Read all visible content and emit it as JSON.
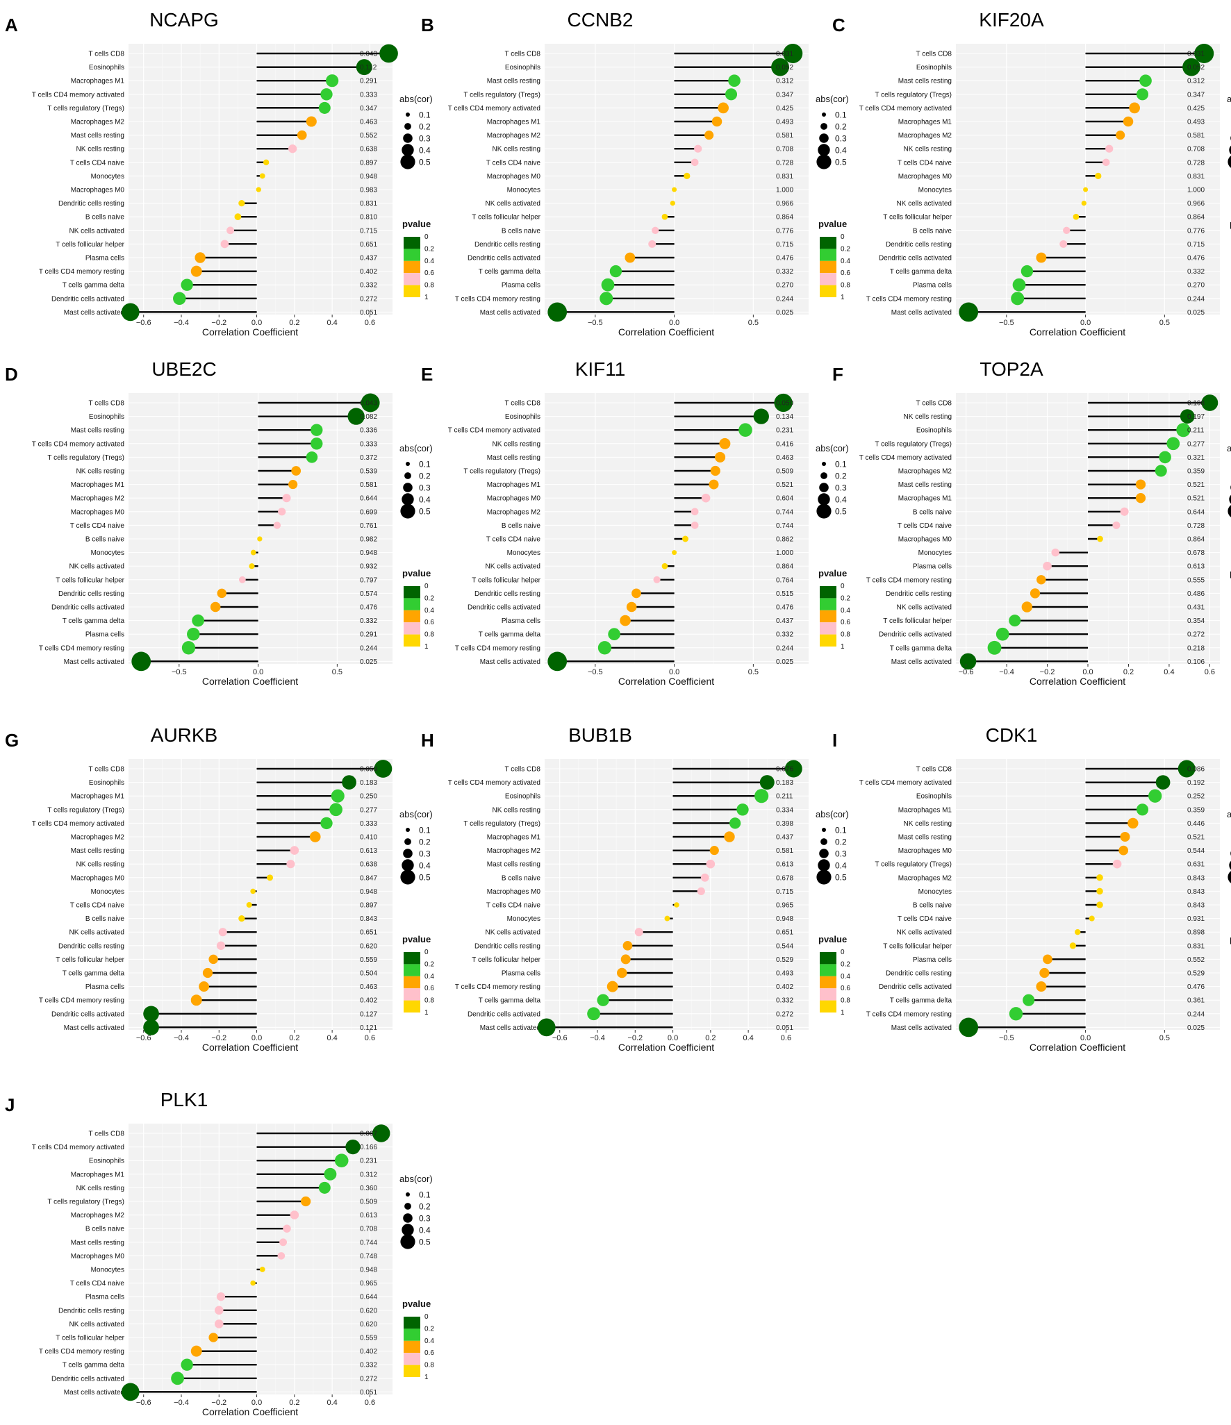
{
  "chart_data": [
    {
      "type": "lollipop",
      "letter": "A",
      "title": "NCAPG",
      "xlabel": "Correlation Coefficient",
      "xticks": [
        -0.6,
        -0.4,
        -0.2,
        0.0,
        0.2,
        0.4,
        0.6
      ],
      "xlim": [
        -0.68,
        0.72
      ],
      "categories": [
        "T cells CD8",
        "Eosinophils",
        "Macrophages M1",
        "T cells CD4 memory activated",
        "T cells regulatory (Tregs)",
        "Macrophages M2",
        "Mast cells resting",
        "NK cells resting",
        "T cells CD4 naive",
        "Monocytes",
        "Macrophages M0",
        "Dendritic cells resting",
        "B cells naive",
        "NK cells activated",
        "T cells follicular helper",
        "Plasma cells",
        "T cells CD4 memory resting",
        "T cells gamma delta",
        "Dendritic cells activated",
        "Mast cells activated"
      ],
      "values": [
        0.7,
        0.57,
        0.4,
        0.37,
        0.36,
        0.29,
        0.24,
        0.19,
        0.05,
        0.03,
        0.01,
        -0.08,
        -0.1,
        -0.14,
        -0.17,
        -0.3,
        -0.32,
        -0.37,
        -0.41,
        -0.67
      ],
      "pvalues": [
        "0.043",
        "0.112",
        "0.291",
        "0.333",
        "0.347",
        "0.463",
        "0.552",
        "0.638",
        "0.897",
        "0.948",
        "0.983",
        "0.831",
        "0.810",
        "0.715",
        "0.651",
        "0.437",
        "0.402",
        "0.332",
        "0.272",
        "0.051"
      ]
    },
    {
      "type": "lollipop",
      "letter": "B",
      "title": "CCNB2",
      "xlabel": "Correlation Coefficient",
      "xticks": [
        -0.5,
        0.0,
        0.5
      ],
      "xlim": [
        -0.82,
        0.85
      ],
      "categories": [
        "T cells CD8",
        "Eosinophils",
        "Mast cells resting",
        "T cells regulatory (Tregs)",
        "T cells CD4 memory activated",
        "Macrophages M1",
        "Macrophages M2",
        "NK cells resting",
        "T cells CD4 naive",
        "Macrophages M0",
        "Monocytes",
        "NK cells activated",
        "T cells follicular helper",
        "B cells naive",
        "Dendritic cells resting",
        "Dendritic cells activated",
        "T cells gamma delta",
        "Plasma cells",
        "T cells CD4 memory resting",
        "Mast cells activated"
      ],
      "values": [
        0.75,
        0.67,
        0.38,
        0.36,
        0.31,
        0.27,
        0.22,
        0.15,
        0.13,
        0.08,
        0.0,
        -0.01,
        -0.06,
        -0.12,
        -0.14,
        -0.28,
        -0.37,
        -0.42,
        -0.43,
        -0.74
      ],
      "pvalues": [
        "0.031",
        "0.052",
        "0.312",
        "0.347",
        "0.425",
        "0.493",
        "0.581",
        "0.708",
        "0.728",
        "0.831",
        "1.000",
        "0.966",
        "0.864",
        "0.776",
        "0.715",
        "0.476",
        "0.332",
        "0.270",
        "0.244",
        "0.025"
      ]
    },
    {
      "type": "lollipop",
      "letter": "C",
      "title": "KIF20A",
      "xlabel": "Correlation Coefficient",
      "xticks": [
        -0.5,
        0.0,
        0.5
      ],
      "xlim": [
        -0.82,
        0.85
      ],
      "categories": [
        "T cells CD8",
        "Eosinophils",
        "Mast cells resting",
        "T cells regulatory (Tregs)",
        "T cells CD4 memory activated",
        "Macrophages M1",
        "Macrophages M2",
        "NK cells resting",
        "T cells CD4 naive",
        "Macrophages M0",
        "Monocytes",
        "NK cells activated",
        "T cells follicular helper",
        "B cells naive",
        "Dendritic cells resting",
        "Dendritic cells activated",
        "T cells gamma delta",
        "Plasma cells",
        "T cells CD4 memory resting",
        "Mast cells activated"
      ],
      "values": [
        0.75,
        0.67,
        0.38,
        0.36,
        0.31,
        0.27,
        0.22,
        0.15,
        0.13,
        0.08,
        0.0,
        -0.01,
        -0.06,
        -0.12,
        -0.14,
        -0.28,
        -0.37,
        -0.42,
        -0.43,
        -0.74
      ],
      "pvalues": [
        "0.031",
        "0.052",
        "0.312",
        "0.347",
        "0.425",
        "0.493",
        "0.581",
        "0.708",
        "0.728",
        "0.831",
        "1.000",
        "0.966",
        "0.864",
        "0.776",
        "0.715",
        "0.476",
        "0.332",
        "0.270",
        "0.244",
        "0.025"
      ]
    },
    {
      "type": "lollipop",
      "letter": "D",
      "title": "UBE2C",
      "xlabel": "Correlation Coefficient",
      "xticks": [
        -0.5,
        0.0,
        0.5
      ],
      "xlim": [
        -0.82,
        0.85
      ],
      "categories": [
        "T cells CD8",
        "Eosinophils",
        "Mast cells resting",
        "T cells CD4 memory activated",
        "T cells regulatory (Tregs)",
        "NK cells resting",
        "Macrophages M1",
        "Macrophages M2",
        "Macrophages M0",
        "T cells CD4 naive",
        "B cells naive",
        "Monocytes",
        "NK cells activated",
        "T cells follicular helper",
        "Dendritic cells resting",
        "Dendritic cells activated",
        "T cells gamma delta",
        "Plasma cells",
        "T cells CD4 memory resting",
        "Mast cells activated"
      ],
      "values": [
        0.71,
        0.62,
        0.37,
        0.37,
        0.34,
        0.24,
        0.22,
        0.18,
        0.15,
        0.12,
        0.01,
        -0.03,
        -0.04,
        -0.1,
        -0.23,
        -0.27,
        -0.38,
        -0.41,
        -0.44,
        -0.74
      ],
      "pvalues": [
        "0.043",
        "0.082",
        "0.336",
        "0.333",
        "0.372",
        "0.539",
        "0.581",
        "0.644",
        "0.699",
        "0.761",
        "0.982",
        "0.948",
        "0.932",
        "0.797",
        "0.574",
        "0.476",
        "0.332",
        "0.291",
        "0.244",
        "0.025"
      ]
    },
    {
      "type": "lollipop",
      "letter": "E",
      "title": "KIF11",
      "xlabel": "Correlation Coefficient",
      "xticks": [
        -0.5,
        0.0,
        0.5
      ],
      "xlim": [
        -0.82,
        0.85
      ],
      "categories": [
        "T cells CD8",
        "Eosinophils",
        "T cells CD4 memory activated",
        "NK cells resting",
        "Mast cells resting",
        "T cells regulatory (Tregs)",
        "Macrophages M1",
        "Macrophages M0",
        "Macrophages M2",
        "B cells naive",
        "T cells CD4 naive",
        "Monocytes",
        "NK cells activated",
        "T cells follicular helper",
        "Dendritic cells resting",
        "Dendritic cells activated",
        "Plasma cells",
        "T cells gamma delta",
        "T cells CD4 memory resting",
        "Mast cells activated"
      ],
      "values": [
        0.69,
        0.55,
        0.45,
        0.32,
        0.29,
        0.26,
        0.25,
        0.2,
        0.13,
        0.13,
        0.07,
        0.0,
        -0.06,
        -0.11,
        -0.24,
        -0.27,
        -0.31,
        -0.38,
        -0.44,
        -0.74
      ],
      "pvalues": [
        "0.050",
        "0.134",
        "0.231",
        "0.416",
        "0.463",
        "0.509",
        "0.521",
        "0.604",
        "0.744",
        "0.744",
        "0.862",
        "1.000",
        "0.864",
        "0.764",
        "0.515",
        "0.476",
        "0.437",
        "0.332",
        "0.244",
        "0.025"
      ]
    },
    {
      "type": "lollipop",
      "letter": "F",
      "title": "TOP2A",
      "xlabel": "Correlation Coefficient",
      "xticks": [
        -0.6,
        -0.4,
        -0.2,
        0.0,
        0.2,
        0.4,
        0.6
      ],
      "xlim": [
        -0.65,
        0.65
      ],
      "categories": [
        "T cells CD8",
        "NK cells resting",
        "Eosinophils",
        "T cells regulatory (Tregs)",
        "T cells CD4 memory activated",
        "Macrophages M2",
        "Mast cells resting",
        "Macrophages M1",
        "B cells naive",
        "T cells CD4 naive",
        "Macrophages M0",
        "Monocytes",
        "Plasma cells",
        "T cells CD4 memory resting",
        "Dendritic cells resting",
        "NK cells activated",
        "T cells follicular helper",
        "Dendritic cells activated",
        "T cells gamma delta",
        "Mast cells activated"
      ],
      "values": [
        0.6,
        0.49,
        0.47,
        0.42,
        0.38,
        0.36,
        0.26,
        0.26,
        0.18,
        0.14,
        0.06,
        -0.16,
        -0.2,
        -0.23,
        -0.26,
        -0.3,
        -0.36,
        -0.42,
        -0.46,
        -0.59
      ],
      "pvalues": [
        "0.108",
        "0.197",
        "0.211",
        "0.277",
        "0.321",
        "0.359",
        "0.521",
        "0.521",
        "0.644",
        "0.728",
        "0.864",
        "0.678",
        "0.613",
        "0.555",
        "0.486",
        "0.431",
        "0.354",
        "0.272",
        "0.218",
        "0.106"
      ]
    },
    {
      "type": "lollipop",
      "letter": "G",
      "title": "AURKB",
      "xlabel": "Correlation Coefficient",
      "xticks": [
        -0.6,
        -0.4,
        -0.2,
        0.0,
        0.2,
        0.4,
        0.6
      ],
      "xlim": [
        -0.68,
        0.72
      ],
      "categories": [
        "T cells CD8",
        "Eosinophils",
        "Macrophages M1",
        "T cells regulatory (Tregs)",
        "T cells CD4 memory activated",
        "Macrophages M2",
        "Mast cells resting",
        "NK cells resting",
        "Macrophages M0",
        "Monocytes",
        "T cells CD4 naive",
        "B cells naive",
        "NK cells activated",
        "Dendritic cells resting",
        "T cells follicular helper",
        "T cells gamma delta",
        "Plasma cells",
        "T cells CD4 memory resting",
        "Dendritic cells activated",
        "Mast cells activated"
      ],
      "values": [
        0.67,
        0.49,
        0.43,
        0.42,
        0.37,
        0.31,
        0.2,
        0.18,
        0.07,
        -0.02,
        -0.04,
        -0.08,
        -0.18,
        -0.19,
        -0.23,
        -0.26,
        -0.28,
        -0.32,
        -0.56,
        -0.56
      ],
      "pvalues": [
        "0.059",
        "0.183",
        "0.250",
        "0.277",
        "0.333",
        "0.410",
        "0.613",
        "0.638",
        "0.847",
        "0.948",
        "0.897",
        "0.843",
        "0.651",
        "0.620",
        "0.559",
        "0.504",
        "0.463",
        "0.402",
        "0.127",
        "0.121"
      ]
    },
    {
      "type": "lollipop",
      "letter": "H",
      "title": "BUB1B",
      "xlabel": "Correlation Coefficient",
      "xticks": [
        -0.6,
        -0.4,
        -0.2,
        0.0,
        0.2,
        0.4,
        0.6
      ],
      "xlim": [
        -0.68,
        0.72
      ],
      "categories": [
        "T cells CD8",
        "T cells CD4 memory activated",
        "Eosinophils",
        "NK cells resting",
        "T cells regulatory (Tregs)",
        "Macrophages M1",
        "Macrophages M2",
        "Mast cells resting",
        "B cells naive",
        "Macrophages M0",
        "T cells CD4 naive",
        "Monocytes",
        "NK cells activated",
        "Dendritic cells resting",
        "T cells follicular helper",
        "Plasma cells",
        "T cells CD4 memory resting",
        "T cells gamma delta",
        "Dendritic cells activated",
        "Mast cells activated"
      ],
      "values": [
        0.64,
        0.5,
        0.47,
        0.37,
        0.33,
        0.3,
        0.22,
        0.2,
        0.17,
        0.15,
        0.02,
        -0.03,
        -0.18,
        -0.24,
        -0.25,
        -0.27,
        -0.32,
        -0.37,
        -0.42,
        -0.67
      ],
      "pvalues": [
        "0.076",
        "0.183",
        "0.211",
        "0.334",
        "0.398",
        "0.437",
        "0.581",
        "0.613",
        "0.678",
        "0.715",
        "0.965",
        "0.948",
        "0.651",
        "0.544",
        "0.529",
        "0.493",
        "0.402",
        "0.332",
        "0.272",
        "0.051"
      ]
    },
    {
      "type": "lollipop",
      "letter": "I",
      "title": "CDK1",
      "xlabel": "Correlation Coefficient",
      "xticks": [
        -0.5,
        0.0,
        0.5
      ],
      "xlim": [
        -0.82,
        0.85
      ],
      "categories": [
        "T cells CD8",
        "T cells CD4 memory activated",
        "Eosinophils",
        "Macrophages M1",
        "NK cells resting",
        "Mast cells resting",
        "Macrophages M0",
        "T cells regulatory (Tregs)",
        "Macrophages M2",
        "Monocytes",
        "B cells naive",
        "T cells CD4 naive",
        "NK cells activated",
        "T cells follicular helper",
        "Plasma cells",
        "Dendritic cells resting",
        "Dendritic cells activated",
        "T cells gamma delta",
        "T cells CD4 memory resting",
        "Mast cells activated"
      ],
      "values": [
        0.64,
        0.49,
        0.44,
        0.36,
        0.3,
        0.25,
        0.24,
        0.2,
        0.09,
        0.09,
        0.09,
        0.04,
        -0.05,
        -0.08,
        -0.24,
        -0.26,
        -0.28,
        -0.36,
        -0.44,
        -0.74
      ],
      "pvalues": [
        "0.086",
        "0.192",
        "0.252",
        "0.359",
        "0.446",
        "0.521",
        "0.544",
        "0.631",
        "0.843",
        "0.843",
        "0.843",
        "0.931",
        "0.898",
        "0.831",
        "0.552",
        "0.529",
        "0.476",
        "0.361",
        "0.244",
        "0.025"
      ]
    },
    {
      "type": "lollipop",
      "letter": "J",
      "title": "PLK1",
      "xlabel": "Correlation Coefficient",
      "xticks": [
        -0.6,
        -0.4,
        -0.2,
        0.0,
        0.2,
        0.4,
        0.6
      ],
      "xlim": [
        -0.68,
        0.72
      ],
      "categories": [
        "T cells CD8",
        "T cells CD4 memory activated",
        "Eosinophils",
        "Macrophages M1",
        "NK cells resting",
        "T cells regulatory (Tregs)",
        "Macrophages M2",
        "B cells naive",
        "Mast cells resting",
        "Macrophages M0",
        "Monocytes",
        "T cells CD4 naive",
        "Plasma cells",
        "Dendritic cells resting",
        "NK cells activated",
        "T cells follicular helper",
        "T cells CD4 memory resting",
        "T cells gamma delta",
        "Dendritic cells activated",
        "Mast cells activated"
      ],
      "values": [
        0.66,
        0.51,
        0.45,
        0.39,
        0.36,
        0.26,
        0.2,
        0.16,
        0.14,
        0.13,
        0.03,
        -0.02,
        -0.19,
        -0.2,
        -0.2,
        -0.23,
        -0.32,
        -0.37,
        -0.42,
        -0.67
      ],
      "pvalues": [
        "0.067",
        "0.166",
        "0.231",
        "0.312",
        "0.360",
        "0.509",
        "0.613",
        "0.708",
        "0.744",
        "0.748",
        "0.948",
        "0.965",
        "0.644",
        "0.620",
        "0.620",
        "0.559",
        "0.402",
        "0.332",
        "0.272",
        "0.051"
      ]
    }
  ],
  "legend": {
    "size_title": "abs(cor)",
    "size_items": [
      "0.1",
      "0.2",
      "0.3",
      "0.4",
      "0.5"
    ],
    "color_title": "pvalue",
    "color_ticks": [
      "0",
      "0.2",
      "0.4",
      "0.6",
      "0.8",
      "1"
    ],
    "color_bins": [
      "#006400",
      "#32CD32",
      "#FFA500",
      "#FFC0CB",
      "#FFD700"
    ]
  },
  "significant_color": "#FF0000"
}
